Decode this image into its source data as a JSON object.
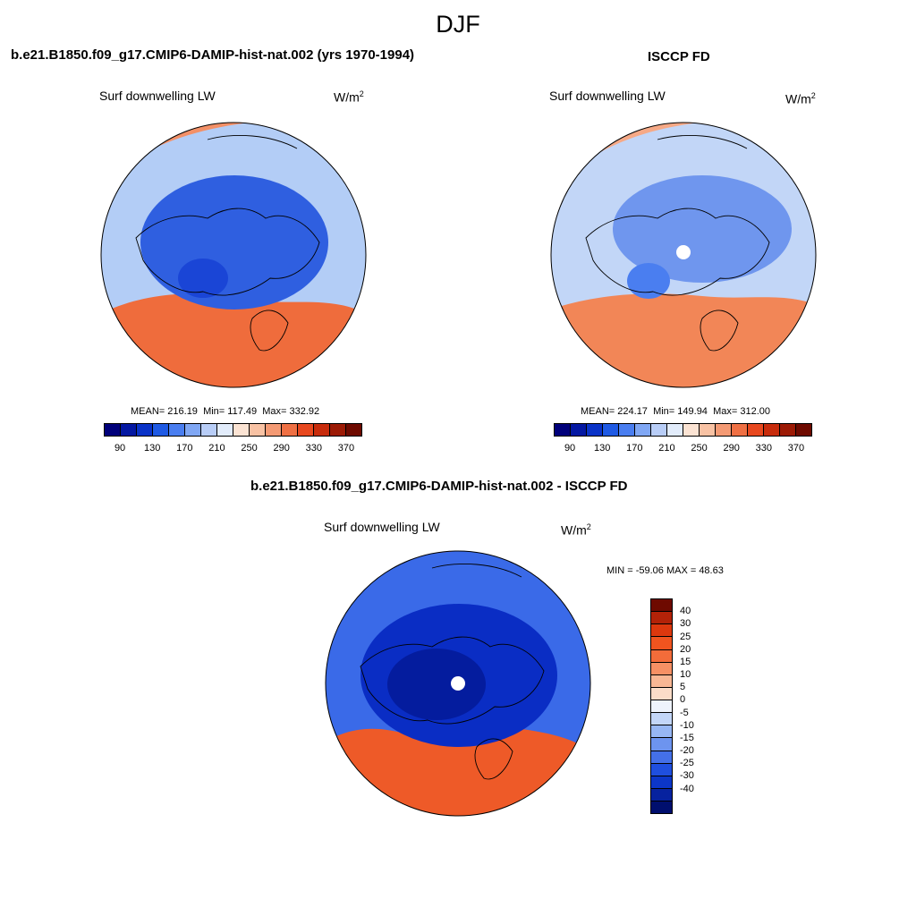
{
  "page": {
    "title": "DJF"
  },
  "panels": {
    "model": {
      "title": "b.e21.B1850.f09_g17.CMIP6-DAMIP-hist-nat.002 (yrs 1970-1994)",
      "variable": "Surf downwelling LW",
      "units_base": "W/m",
      "units_exp": "2",
      "mean_label": "MEAN=",
      "mean": "216.19",
      "min_label": "Min=",
      "min": "117.49",
      "max_label": "Max=",
      "max": "332.92"
    },
    "obs": {
      "title": "ISCCP FD",
      "variable": "Surf downwelling LW",
      "units_base": "W/m",
      "units_exp": "2",
      "mean_label": "MEAN=",
      "mean": "224.17",
      "min_label": "Min=",
      "min": "149.94",
      "max_label": "Max=",
      "max": "312.00"
    },
    "diff": {
      "title": "b.e21.B1850.f09_g17.CMIP6-DAMIP-hist-nat.002 - ISCCP FD",
      "variable": "Surf downwelling LW",
      "units_base": "W/m",
      "units_exp": "2",
      "minmax": "MIN = -59.06 MAX =  48.63"
    }
  },
  "colorbar_abs": {
    "ticks": [
      "90",
      "130",
      "170",
      "210",
      "250",
      "290",
      "330",
      "370"
    ],
    "colors": [
      "#00007a",
      "#0418a2",
      "#0a33c8",
      "#1f5ae4",
      "#4a7ef0",
      "#80a7f4",
      "#b8cdf7",
      "#e2ecfb",
      "#fbe3d3",
      "#f8c2a4",
      "#f49a74",
      "#ef7044",
      "#e8481f",
      "#c82c0c",
      "#9c1a05",
      "#6e0a00"
    ]
  },
  "colorbar_diff": {
    "ticks": [
      "40",
      "30",
      "25",
      "20",
      "15",
      "10",
      "5",
      "0",
      "-5",
      "-10",
      "-15",
      "-20",
      "-25",
      "-30",
      "-40"
    ],
    "colors": [
      "#6e0a00",
      "#b32208",
      "#dd380e",
      "#f0541f",
      "#f36c3a",
      "#f69064",
      "#f8b794",
      "#fbdcc8",
      "#eef3fc",
      "#c3d6f8",
      "#97b7f4",
      "#6d94ef",
      "#4470e8",
      "#1f4fdf",
      "#0c36c8",
      "#06229f",
      "#000f6e"
    ]
  },
  "maps": {
    "model": {
      "background": "#b3cdf6",
      "polar_cap": "#2f5fe0",
      "south_warm": "#ef6c3c",
      "north_warm": "#f39067",
      "cold_core": "#1a45d6"
    },
    "obs": {
      "background": "#c2d6f7",
      "polar_cap": "#6f96ee",
      "south_warm": "#f28657",
      "north_warm": "#f6a986",
      "cold_core": "#4a7ef0",
      "pole_hole": "#ffffff"
    },
    "diff": {
      "background": "#3a6ae8",
      "polar_cap": "#0a2dc4",
      "south_warm": "#ee5a28",
      "north_warm": "#f06a35",
      "cold_core": "#041c9e",
      "pole_hole": "#ffffff"
    }
  }
}
